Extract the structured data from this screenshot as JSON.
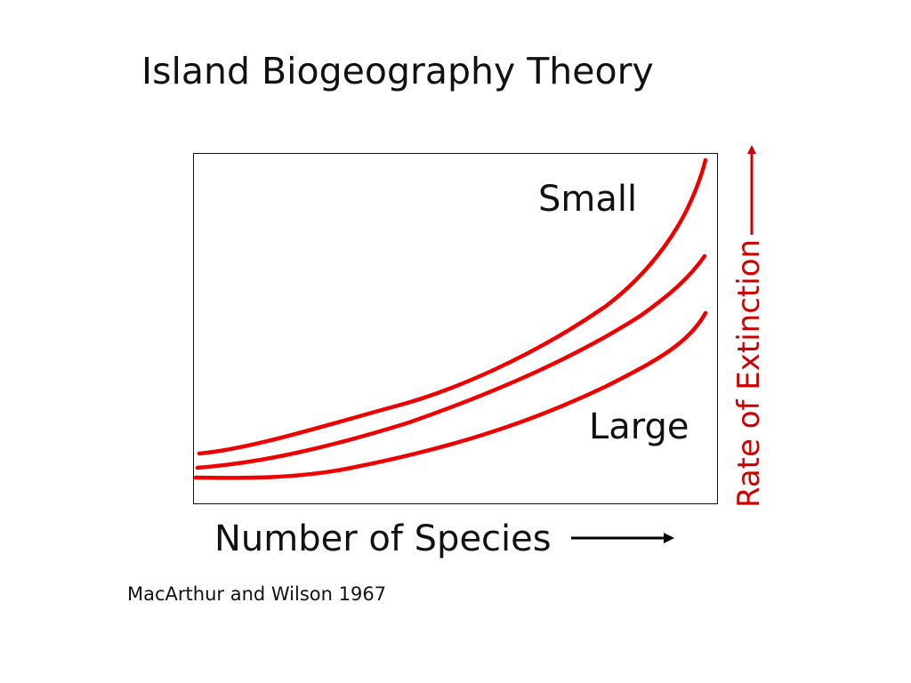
{
  "slide": {
    "title": "Island Biogeography Theory",
    "citation": "MacArthur and Wilson 1967"
  },
  "diagram": {
    "curve_labels": {
      "small": "Small",
      "large": "Large"
    },
    "x_axis_label": "Number of Species",
    "y_axis_label": "Rate of Extinction",
    "curve_color": "#ee0000",
    "y_axis_arrow_color": "#cc0000",
    "x_axis_arrow_color": "#000000",
    "icons": {
      "x_arrow": "right-arrow",
      "y_arrow": "up-arrow"
    }
  }
}
